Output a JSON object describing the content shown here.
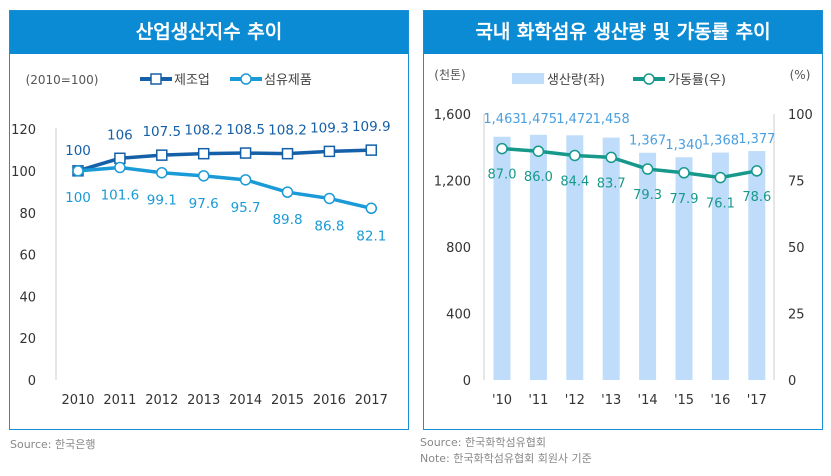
{
  "chart_data": [
    {
      "type": "line",
      "title": "산업생산지수 추이",
      "unit_label": "(2010=100)",
      "categories": [
        "2010",
        "2011",
        "2012",
        "2013",
        "2014",
        "2015",
        "2016",
        "2017"
      ],
      "ylim": [
        0,
        120
      ],
      "yticks": [
        "0",
        "20",
        "40",
        "60",
        "80",
        "100",
        "120"
      ],
      "legend": "top",
      "series": [
        {
          "name": "제조업",
          "color": "#1560a8",
          "marker": "square",
          "values": [
            100,
            106,
            107.5,
            108.2,
            108.5,
            108.2,
            109.3,
            109.9
          ],
          "labels": [
            "100",
            "106",
            "107.5",
            "108.2",
            "108.5",
            "108.2",
            "109.3",
            "109.9"
          ]
        },
        {
          "name": "섬유제품",
          "color": "#1a9ad6",
          "marker": "circle",
          "values": [
            100,
            101.6,
            99.1,
            97.6,
            95.7,
            89.8,
            86.8,
            82.1
          ],
          "labels": [
            "100",
            "101.6",
            "99.1",
            "97.6",
            "95.7",
            "89.8",
            "86.8",
            "82.1"
          ]
        }
      ]
    },
    {
      "type": "bar+line",
      "title": "국내 화학섬유 생산량 및 가동률 추이",
      "left_unit": "(천톤)",
      "right_unit": "(%)",
      "categories": [
        "'10",
        "'11",
        "'12",
        "'13",
        "'14",
        "'15",
        "'16",
        "'17"
      ],
      "ylim_left": [
        0,
        1600
      ],
      "yticks_left": [
        "0",
        "400",
        "800",
        "1,200",
        "1,600"
      ],
      "ylim_right": [
        0,
        100
      ],
      "yticks_right": [
        "0",
        "25",
        "50",
        "75",
        "100"
      ],
      "legend": "top",
      "series": [
        {
          "name": "생산량(좌)",
          "type": "bar",
          "color": "#bfdcfa",
          "values": [
            1463,
            1475,
            1472,
            1458,
            1367,
            1340,
            1368,
            1377
          ],
          "labels": [
            "1,463",
            "1,475",
            "1,472",
            "1,458",
            "1,367",
            "1,340",
            "1,368",
            "1,377"
          ]
        },
        {
          "name": "가동률(우)",
          "type": "line",
          "color": "#16998a",
          "values": [
            87.0,
            86.0,
            84.4,
            83.7,
            79.3,
            77.9,
            76.1,
            78.6
          ],
          "labels": [
            "87.0",
            "86.0",
            "84.4",
            "83.7",
            "79.3",
            "77.9",
            "76.1",
            "78.6"
          ]
        }
      ]
    }
  ],
  "sources": {
    "left": "Source: 한국은행",
    "right_source": "Source: 한국화학섬유협회",
    "right_note": "Note: 한국화학섬유협회 회원사 기준"
  }
}
